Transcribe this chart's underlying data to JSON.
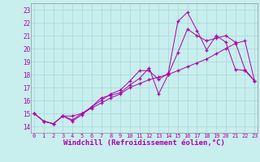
{
  "background_color": "#c8eeee",
  "grid_color": "#a8d8d8",
  "line_color": "#aa00aa",
  "xlabel": "Windchill (Refroidissement éolien,°C)",
  "xlabel_fontsize": 6.5,
  "yticks": [
    14,
    15,
    16,
    17,
    18,
    19,
    20,
    21,
    22,
    23
  ],
  "xticks": [
    0,
    1,
    2,
    3,
    4,
    5,
    6,
    7,
    8,
    9,
    10,
    11,
    12,
    13,
    14,
    15,
    16,
    17,
    18,
    19,
    20,
    21,
    22,
    23
  ],
  "xlim": [
    -0.3,
    23.3
  ],
  "ylim": [
    13.5,
    23.5
  ],
  "series1_x": [
    0,
    1,
    2,
    3,
    4,
    5,
    6,
    7,
    8,
    9,
    10,
    11,
    12,
    13,
    14,
    15,
    16,
    17,
    18,
    19,
    20,
    21,
    22,
    23
  ],
  "series1_y": [
    15.0,
    14.4,
    14.2,
    14.8,
    14.8,
    15.0,
    15.4,
    15.8,
    16.2,
    16.5,
    17.0,
    17.3,
    17.6,
    17.8,
    18.0,
    18.3,
    18.6,
    18.9,
    19.2,
    19.6,
    20.0,
    20.4,
    20.6,
    17.5
  ],
  "series2_x": [
    0,
    1,
    2,
    3,
    4,
    5,
    6,
    7,
    8,
    9,
    10,
    11,
    12,
    13,
    14,
    15,
    16,
    17,
    18,
    19,
    20,
    21,
    22,
    23
  ],
  "series2_y": [
    15.0,
    14.4,
    14.2,
    14.8,
    14.4,
    14.9,
    15.5,
    16.0,
    16.5,
    16.8,
    17.5,
    18.3,
    18.3,
    17.6,
    18.1,
    22.1,
    22.8,
    21.4,
    19.9,
    21.0,
    20.5,
    18.4,
    18.3,
    17.5
  ],
  "series3_x": [
    0,
    1,
    2,
    3,
    4,
    5,
    6,
    7,
    8,
    9,
    10,
    11,
    12,
    13,
    14,
    15,
    16,
    17,
    18,
    19,
    20,
    21,
    22,
    23
  ],
  "series3_y": [
    15.0,
    14.4,
    14.2,
    14.8,
    14.5,
    15.0,
    15.5,
    16.2,
    16.4,
    16.6,
    17.2,
    17.7,
    18.5,
    16.5,
    18.0,
    19.7,
    21.5,
    21.0,
    20.6,
    20.8,
    21.0,
    20.5,
    18.4,
    17.5
  ]
}
